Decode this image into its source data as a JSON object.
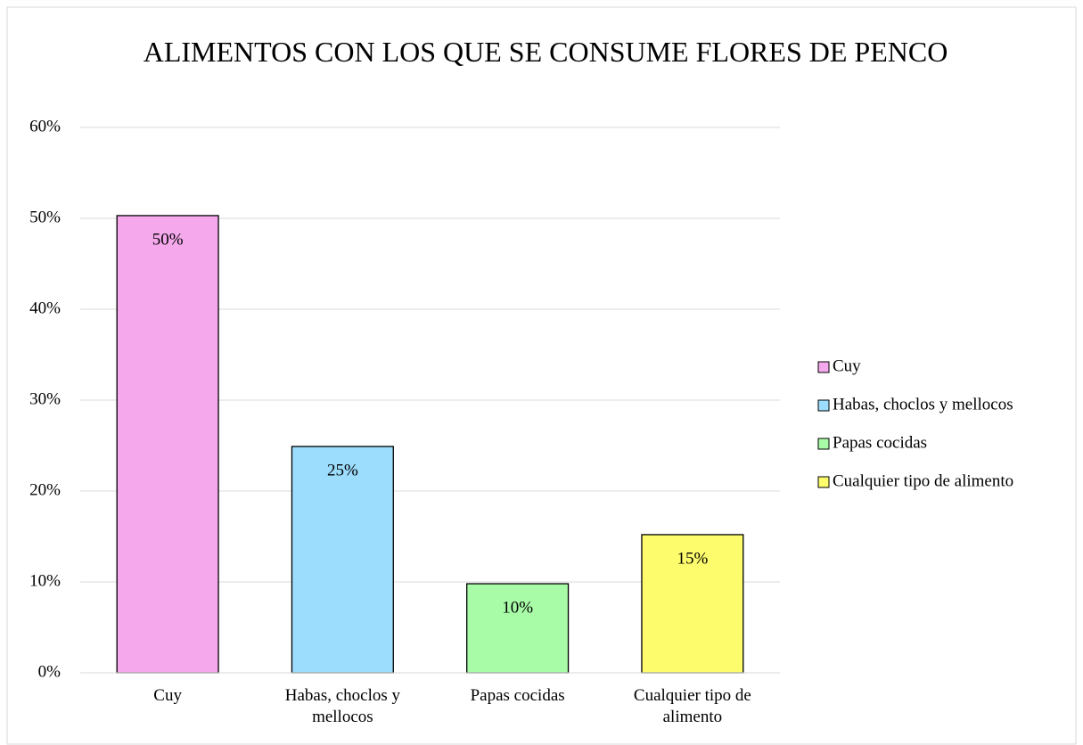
{
  "chart_data": {
    "type": "bar",
    "title": "ALIMENTOS CON LOS QUE SE CONSUME FLORES DE PENCO",
    "categories": [
      "Cuy",
      "Habas, choclos y mellocos",
      "Papas cocidas",
      "Cualquier tipo de alimento"
    ],
    "values": [
      50.3,
      24.9,
      9.8,
      15.2
    ],
    "value_labels": [
      "50%",
      "25%",
      "10%",
      "15%"
    ],
    "colors": [
      "#f5a8ec",
      "#9cdcfc",
      "#a8fca8",
      "#fcfc6c"
    ],
    "ylim": [
      0,
      60
    ],
    "yticks": [
      {
        "value": 0,
        "label": "0%"
      },
      {
        "value": 10,
        "label": "10%"
      },
      {
        "value": 20,
        "label": "20%"
      },
      {
        "value": 30,
        "label": "30%"
      },
      {
        "value": 40,
        "label": "40%"
      },
      {
        "value": 50,
        "label": "50%"
      },
      {
        "value": 60,
        "label": "60%"
      }
    ],
    "grid": true,
    "legend": "right"
  }
}
